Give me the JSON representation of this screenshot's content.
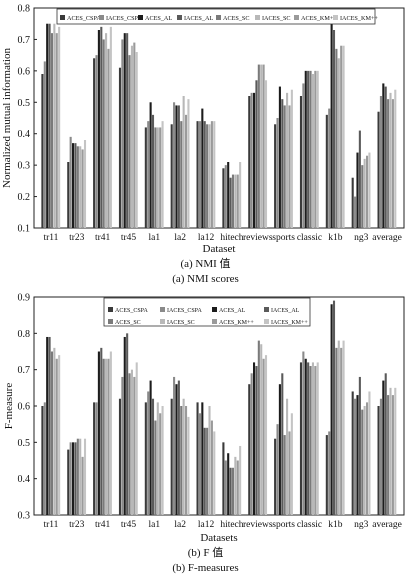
{
  "colors": {
    "ACES_CSPA": "#3a3a3a",
    "IACES_CSPA": "#8a8a8a",
    "ACES_AL": "#1c1c1c",
    "IACES_AL": "#5a5a5a",
    "ACES_SC": "#7a7a7a",
    "IACES_SC": "#b8b8b8",
    "ACES_KM++": "#9a9a9a",
    "IACES_KM++": "#c4c4c4"
  },
  "panels": [
    {
      "caption_cn": "(a) NMI 值",
      "caption_en": "(a) NMI scores",
      "chart_data": {
        "type": "bar",
        "xlabel": "Dataset",
        "ylabel": "Normalized mutual information",
        "ylim": [
          0.1,
          0.8
        ],
        "yticks": [
          "0.1",
          "0.2",
          "0.3",
          "0.4",
          "0.5",
          "0.6",
          "0.7",
          "0.8"
        ],
        "legend_position": "top",
        "categories": [
          "tr11",
          "tr23",
          "tr41",
          "tr45",
          "la1",
          "la2",
          "la12",
          "hitech",
          "reviews",
          "sports",
          "classic",
          "k1b",
          "ng3",
          "average"
        ],
        "series": [
          {
            "name": "ACES_CSPA",
            "values": [
              0.59,
              0.31,
              0.64,
              0.61,
              0.42,
              0.43,
              0.44,
              0.29,
              0.52,
              0.43,
              0.52,
              0.46,
              0.26,
              0.47
            ]
          },
          {
            "name": "IACES_CSPA",
            "values": [
              0.63,
              0.39,
              0.65,
              0.7,
              0.44,
              0.5,
              0.44,
              0.3,
              0.53,
              0.45,
              0.56,
              0.48,
              0.2,
              0.52
            ]
          },
          {
            "name": "ACES_AL",
            "values": [
              0.75,
              0.37,
              0.73,
              0.72,
              0.5,
              0.49,
              0.48,
              0.31,
              0.53,
              0.55,
              0.6,
              0.76,
              0.34,
              0.56
            ]
          },
          {
            "name": "IACES_AL",
            "values": [
              0.75,
              0.37,
              0.74,
              0.72,
              0.46,
              0.49,
              0.44,
              0.26,
              0.57,
              0.51,
              0.6,
              0.73,
              0.41,
              0.55
            ]
          },
          {
            "name": "ACES_SC",
            "values": [
              0.72,
              0.36,
              0.7,
              0.65,
              0.42,
              0.44,
              0.43,
              0.27,
              0.62,
              0.49,
              0.6,
              0.67,
              0.3,
              0.51
            ]
          },
          {
            "name": "IACES_SC",
            "values": [
              0.75,
              0.36,
              0.72,
              0.68,
              0.42,
              0.52,
              0.43,
              0.27,
              0.62,
              0.53,
              0.59,
              0.64,
              0.32,
              0.53
            ]
          },
          {
            "name": "ACES_KM++",
            "values": [
              0.72,
              0.35,
              0.67,
              0.69,
              0.42,
              0.46,
              0.44,
              0.27,
              0.62,
              0.49,
              0.6,
              0.68,
              0.33,
              0.51
            ]
          },
          {
            "name": "IACES_KM++",
            "values": [
              0.74,
              0.38,
              0.74,
              0.66,
              0.44,
              0.51,
              0.44,
              0.31,
              0.57,
              0.54,
              0.6,
              0.68,
              0.34,
              0.54
            ]
          }
        ]
      }
    },
    {
      "caption_cn": "(b) F 值",
      "caption_en": "(b) F-measures",
      "chart_data": {
        "type": "bar",
        "xlabel": "Datasets",
        "ylabel": "F-measure",
        "ylim": [
          0.3,
          0.9
        ],
        "yticks": [
          "0.3",
          "0.4",
          "0.5",
          "0.6",
          "0.7",
          "0.8",
          "0.9"
        ],
        "legend_position": "top",
        "categories": [
          "tr11",
          "tr23",
          "tr41",
          "tr45",
          "la1",
          "la2",
          "la12",
          "hitech",
          "reviews",
          "sports",
          "classic",
          "k1b",
          "ng3",
          "average"
        ],
        "series": [
          {
            "name": "ACES_CSPA",
            "values": [
              0.6,
              0.48,
              0.61,
              0.62,
              0.61,
              0.62,
              0.61,
              0.5,
              0.66,
              0.51,
              0.72,
              0.52,
              0.64,
              0.6
            ]
          },
          {
            "name": "IACES_CSPA",
            "values": [
              0.61,
              0.5,
              0.61,
              0.68,
              0.64,
              0.68,
              0.58,
              0.45,
              0.69,
              0.55,
              0.75,
              0.53,
              0.62,
              0.62
            ]
          },
          {
            "name": "ACES_AL",
            "values": [
              0.79,
              0.5,
              0.75,
              0.79,
              0.67,
              0.66,
              0.61,
              0.47,
              0.72,
              0.66,
              0.73,
              0.88,
              0.63,
              0.67
            ]
          },
          {
            "name": "IACES_AL",
            "values": [
              0.79,
              0.5,
              0.76,
              0.8,
              0.62,
              0.67,
              0.54,
              0.43,
              0.71,
              0.69,
              0.72,
              0.89,
              0.68,
              0.69
            ]
          },
          {
            "name": "ACES_SC",
            "values": [
              0.75,
              0.51,
              0.73,
              0.69,
              0.56,
              0.6,
              0.54,
              0.43,
              0.78,
              0.52,
              0.71,
              0.76,
              0.59,
              0.63
            ]
          },
          {
            "name": "IACES_SC",
            "values": [
              0.76,
              0.51,
              0.73,
              0.7,
              0.61,
              0.62,
              0.6,
              0.46,
              0.77,
              0.62,
              0.72,
              0.78,
              0.6,
              0.65
            ]
          },
          {
            "name": "ACES_KM++",
            "values": [
              0.73,
              0.46,
              0.73,
              0.68,
              0.58,
              0.6,
              0.56,
              0.45,
              0.73,
              0.53,
              0.71,
              0.76,
              0.61,
              0.63
            ]
          },
          {
            "name": "IACES_KM++",
            "values": [
              0.74,
              0.51,
              0.75,
              0.72,
              0.6,
              0.57,
              0.53,
              0.49,
              0.74,
              0.58,
              0.72,
              0.78,
              0.64,
              0.65
            ]
          }
        ]
      }
    }
  ]
}
